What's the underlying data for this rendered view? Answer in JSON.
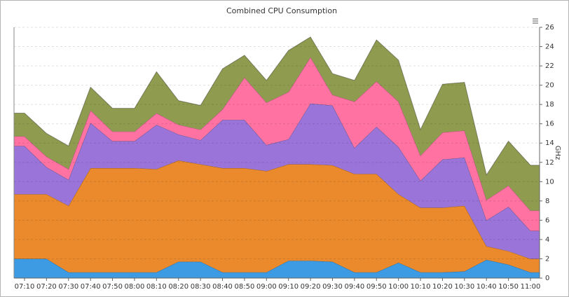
{
  "chart_data": {
    "type": "stacked-area",
    "title": "Combined CPU Consumption",
    "y_label": "GHz",
    "x": [
      "07:10",
      "07:20",
      "07:30",
      "07:40",
      "07:50",
      "08:00",
      "08:10",
      "08:20",
      "08:30",
      "08:40",
      "08:50",
      "09:00",
      "09:10",
      "09:20",
      "09:30",
      "09:40",
      "09:50",
      "10:00",
      "10:10",
      "10:20",
      "10:30",
      "10:40",
      "10:50",
      "11:00"
    ],
    "series": [
      {
        "color": "#3d9be3",
        "values": [
          2.0,
          2.0,
          0.6,
          0.6,
          0.6,
          0.6,
          0.6,
          1.7,
          1.7,
          0.6,
          0.6,
          0.6,
          1.8,
          1.8,
          1.7,
          0.6,
          0.6,
          1.6,
          0.6,
          0.6,
          0.7,
          1.9,
          1.4,
          0.6
        ]
      },
      {
        "color": "#ea8a2c",
        "values": [
          6.7,
          6.7,
          6.9,
          10.8,
          10.8,
          10.8,
          10.7,
          10.5,
          10.1,
          10.8,
          10.8,
          10.5,
          10.0,
          10.0,
          10.0,
          10.2,
          10.2,
          7.1,
          6.7,
          6.7,
          6.8,
          1.4,
          1.4,
          1.4
        ]
      },
      {
        "color": "#9a74d8",
        "values": [
          5.0,
          2.8,
          2.7,
          4.7,
          2.8,
          2.8,
          4.6,
          2.7,
          2.5,
          5.0,
          5.0,
          2.7,
          2.6,
          6.3,
          6.2,
          2.7,
          4.9,
          4.9,
          2.8,
          5.0,
          5.0,
          2.7,
          4.6,
          2.9
        ]
      },
      {
        "color": "#ff72a2",
        "values": [
          1.0,
          1.1,
          1.1,
          1.3,
          1.0,
          1.0,
          1.2,
          1.0,
          1.1,
          1.1,
          4.4,
          4.4,
          4.9,
          4.8,
          1.1,
          4.8,
          4.7,
          4.7,
          2.6,
          2.8,
          2.8,
          2.1,
          2.2,
          2.1
        ]
      },
      {
        "color": "#8f9c50",
        "values": [
          2.4,
          2.4,
          2.4,
          2.4,
          2.4,
          2.4,
          4.3,
          2.5,
          2.5,
          4.2,
          2.3,
          2.3,
          4.3,
          2.1,
          2.2,
          2.2,
          4.3,
          4.3,
          2.7,
          5.0,
          5.0,
          2.6,
          4.6,
          4.7
        ]
      }
    ],
    "ylim": [
      0,
      26
    ],
    "yticks": [
      0,
      2,
      4,
      6,
      8,
      10,
      12,
      14,
      16,
      18,
      20,
      22,
      24,
      26
    ],
    "grid": true
  }
}
